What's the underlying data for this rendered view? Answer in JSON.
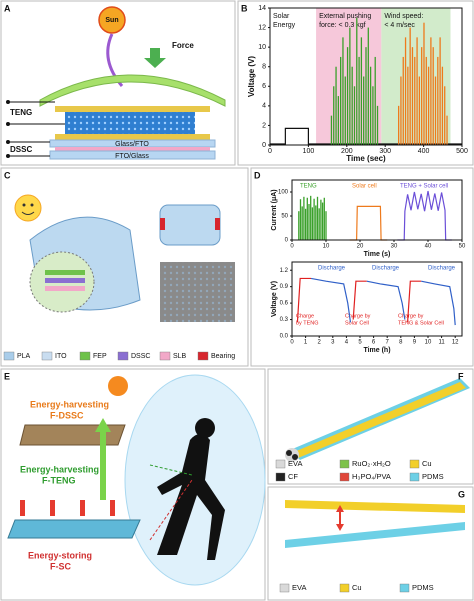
{
  "panel_labels": [
    "A",
    "B",
    "C",
    "D",
    "E",
    "F",
    "G"
  ],
  "panel_a": {
    "sun": "Sun",
    "force": "Force",
    "teng": "TENG",
    "dssc": "DSSC",
    "layer_top": "Glass/FTO",
    "layer_bottom": "FTO/Glass"
  },
  "panel_b": {
    "type": "line",
    "ylabel": "Voltage (V)",
    "xlabel": "Time (sec)",
    "xlim": [
      0,
      500
    ],
    "ylim": [
      0,
      14
    ],
    "xticks": [
      0,
      100,
      200,
      300,
      400,
      500
    ],
    "yticks": [
      0,
      2,
      4,
      6,
      8,
      10,
      12,
      14
    ],
    "regions": [
      {
        "lines": [
          "Solar",
          "Energy"
        ],
        "range": [
          0,
          120
        ],
        "color": "#ffffff"
      },
      {
        "lines": [
          "External pushing",
          "force: < 0.3 kgf"
        ],
        "range": [
          120,
          290
        ],
        "color": "#f6c8da"
      },
      {
        "lines": [
          "Wind speed:",
          "< 4 m/sec"
        ],
        "range": [
          290,
          470
        ],
        "color": "#d2ebcb"
      }
    ],
    "series": [
      {
        "style": "line",
        "color": "#111111",
        "x": [
          0,
          40,
          40,
          100,
          100,
          500
        ],
        "values": [
          0.1,
          0.1,
          1.7,
          1.7,
          0.1,
          0.1
        ]
      },
      {
        "style": "spikes",
        "color": "#3aa02a",
        "x": [
          160,
          166,
          172,
          178,
          184,
          190,
          196,
          202,
          208,
          214,
          220,
          226,
          232,
          238,
          244,
          250,
          256,
          262,
          268,
          274,
          280
        ],
        "values": [
          3,
          6,
          8,
          5,
          9,
          11,
          7,
          10,
          12,
          8,
          6,
          13,
          9,
          11,
          7,
          10,
          12,
          8,
          6,
          9,
          4
        ]
      },
      {
        "style": "spikes",
        "color": "#ee7a1c",
        "x": [
          335,
          341,
          347,
          353,
          359,
          365,
          371,
          377,
          383,
          389,
          395,
          401,
          407,
          413,
          419,
          425,
          431,
          437,
          443,
          449,
          455,
          461
        ],
        "values": [
          4,
          7,
          9,
          11,
          8,
          12,
          10,
          9,
          11,
          7,
          10,
          12.5,
          9,
          8,
          11,
          10,
          7,
          9,
          11,
          8,
          6,
          3
        ]
      }
    ]
  },
  "panel_c": {
    "legend": [
      {
        "name": "PLA",
        "color": "#a9cdea"
      },
      {
        "name": "ITO",
        "color": "#c9ddf0"
      },
      {
        "name": "FEP",
        "color": "#6ec24a"
      },
      {
        "name": "DSSC",
        "color": "#8a6fd1"
      },
      {
        "name": "SLB",
        "color": "#f2a8c8"
      },
      {
        "name": "Bearing",
        "color": "#d7262e"
      }
    ]
  },
  "panel_d_top": {
    "type": "line",
    "ylabel": "Current (μA)",
    "xlabel": "Time (s)",
    "xlim": [
      0,
      50
    ],
    "ylim": [
      0,
      125
    ],
    "xticks": [
      0,
      10,
      20,
      30,
      40,
      50
    ],
    "yticks": [
      0,
      50,
      100
    ],
    "labels": {
      "teng": "TENG",
      "solar": "Solar cell",
      "both": "TENG + Solar cell"
    },
    "series": [
      {
        "style": "spikes",
        "color": "#3aa02a",
        "x": [
          2,
          2.5,
          3,
          3.5,
          4,
          4.5,
          5,
          5.5,
          6,
          6.5,
          7,
          7.5,
          8,
          8.5,
          9,
          9.5,
          10
        ],
        "values": [
          60,
          85,
          70,
          90,
          65,
          88,
          75,
          92,
          68,
          86,
          72,
          90,
          66,
          84,
          78,
          88,
          60
        ]
      },
      {
        "style": "line",
        "color": "#ee7a1c",
        "x": [
          17,
          19,
          19.2,
          26,
          26.2,
          28
        ],
        "values": [
          0,
          0,
          70,
          70,
          0,
          0
        ]
      },
      {
        "style": "line",
        "color": "#6b4fd8",
        "x": [
          31,
          33,
          33.2,
          34,
          35,
          36,
          37,
          38,
          39,
          40,
          41,
          42,
          43,
          44,
          45,
          45.2,
          47
        ],
        "values": [
          0,
          0,
          60,
          95,
          62,
          100,
          64,
          96,
          60,
          102,
          63,
          97,
          61,
          99,
          62,
          0,
          0
        ]
      }
    ]
  },
  "panel_d_bottom": {
    "type": "line",
    "ylabel": "Voltage (V)",
    "xlabel": "Time (h)",
    "xlim": [
      0,
      12.5
    ],
    "ylim": [
      0,
      1.35
    ],
    "xticks": [
      0,
      1,
      2,
      3,
      4,
      5,
      6,
      7,
      8,
      9,
      10,
      11,
      12
    ],
    "yticks": [
      {
        "value": 0,
        "label": "0.0"
      },
      {
        "value": 0.3,
        "label": "0.3"
      },
      {
        "value": 0.6,
        "label": "0.6"
      },
      {
        "value": 0.9,
        "label": "0.9"
      },
      {
        "value": 1.2,
        "label": "1.2"
      }
    ],
    "labels": {
      "discharge_1": "Discharge",
      "discharge_2": "Discharge",
      "discharge_3": "Discharge",
      "charge_1": [
        "Charge",
        "by TENG"
      ],
      "charge_2": [
        "Charge by",
        "Solar Cell"
      ],
      "charge_3": [
        "Charge by",
        "TENG & Solar Cell"
      ]
    },
    "series": [
      {
        "style": "line",
        "color": "#e02020",
        "x": [
          0.4,
          0.6,
          1.4,
          1.5,
          4.5,
          4.7,
          5.5,
          5.6,
          8.5,
          8.7,
          9.5
        ],
        "values": [
          0.25,
          1.05,
          1.05,
          null,
          0.3,
          1.0,
          1.0,
          null,
          0.25,
          1.0,
          1.0
        ]
      },
      {
        "style": "line",
        "color": "#3060c8",
        "x": [
          1.4,
          2.5,
          3.8,
          4.1,
          4.3,
          4.4,
          5.5,
          6.5,
          7.8,
          8.1,
          8.3,
          8.4,
          9.5,
          10.5,
          11.6,
          11.9,
          12.0
        ],
        "values": [
          1.05,
          1.0,
          0.95,
          0.6,
          0.25,
          null,
          1.0,
          0.95,
          0.9,
          0.6,
          0.3,
          null,
          1.0,
          0.95,
          0.9,
          0.5,
          0.2
        ]
      }
    ]
  },
  "panel_e": {
    "dssc": [
      "Energy-harvesting",
      "F-DSSC"
    ],
    "teng": [
      "Energy-harvesting",
      "F-TENG"
    ],
    "sc": [
      "Energy-storing",
      "F-SC"
    ]
  },
  "panel_f": {
    "legend": [
      {
        "name": "EVA",
        "color": "#d9d9d9"
      },
      {
        "name": "RuO₂·xH₂O",
        "color": "#7dc24a"
      },
      {
        "name": "Cu",
        "color": "#f2cf2a"
      },
      {
        "name": "CF",
        "color": "#222222"
      },
      {
        "name": "H₃PO₄/PVA",
        "color": "#e0473a"
      },
      {
        "name": "PDMS",
        "color": "#6dd0e6"
      }
    ]
  },
  "panel_g": {
    "legend": [
      {
        "name": "EVA",
        "color": "#d9d9d9"
      },
      {
        "name": "Cu",
        "color": "#f2cf2a"
      },
      {
        "name": "PDMS",
        "color": "#6dd0e6"
      }
    ]
  }
}
